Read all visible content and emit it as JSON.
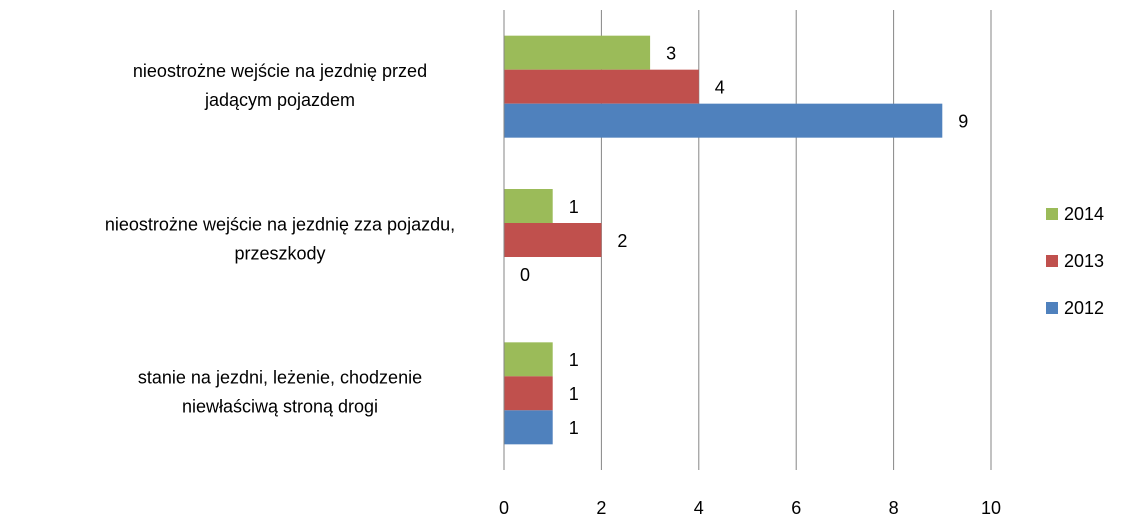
{
  "chart_data": {
    "type": "barh",
    "categories": [
      [
        "nieostrożne wejście na jezdnię przed",
        "jadącym pojazdem"
      ],
      [
        "nieostrożne wejście na jezdnię zza pojazdu,",
        "przeszkody"
      ],
      [
        "stanie na jezdni, leżenie, chodzenie",
        "niewłaściwą stroną drogi"
      ]
    ],
    "series": [
      {
        "name": "2014",
        "color": "#9bbb59",
        "values": [
          3,
          1,
          1
        ]
      },
      {
        "name": "2013",
        "color": "#c0504d",
        "values": [
          4,
          2,
          1
        ]
      },
      {
        "name": "2012",
        "color": "#4f81bd",
        "values": [
          9,
          0,
          1
        ]
      }
    ],
    "xlim": [
      0,
      10
    ],
    "xticks": [
      0,
      2,
      4,
      6,
      8,
      10
    ],
    "grid": true,
    "legend": "right"
  }
}
